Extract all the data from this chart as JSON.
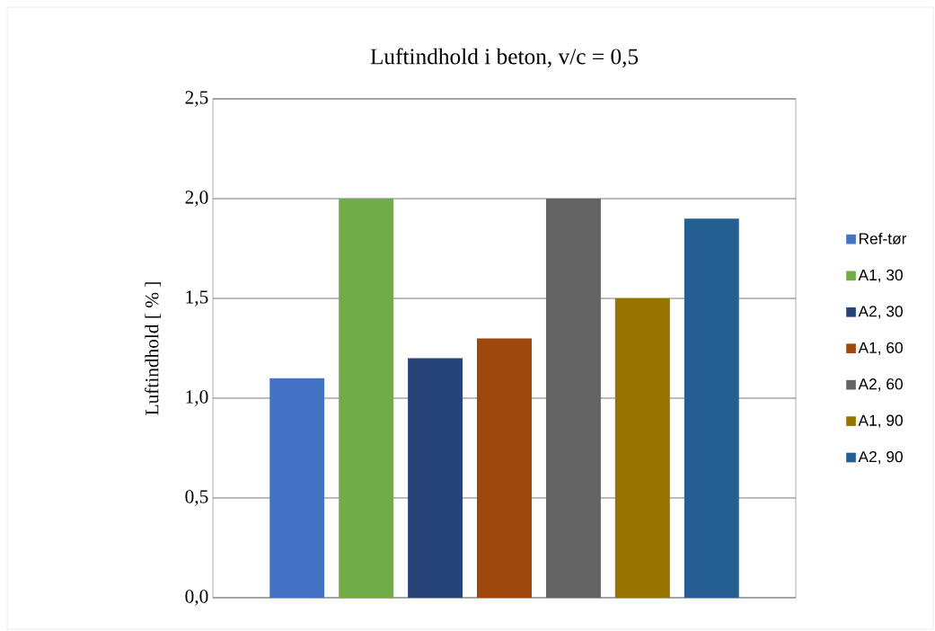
{
  "chart_data": {
    "type": "bar",
    "title": "Luftindhold i beton, v/c = 0,5",
    "ylabel": "Luftindhold [ % ]",
    "categories": [
      null
    ],
    "series": [
      {
        "name": "Ref-tør",
        "color": "#4472c4",
        "values": [
          1.1
        ]
      },
      {
        "name": "A1, 30",
        "color": "#70ad47",
        "values": [
          2.0
        ]
      },
      {
        "name": "A2, 30",
        "color": "#264478",
        "values": [
          1.2
        ]
      },
      {
        "name": "A1, 60",
        "color": "#9e480e",
        "values": [
          1.3
        ]
      },
      {
        "name": "A2, 60",
        "color": "#636363",
        "values": [
          2.0
        ]
      },
      {
        "name": "A1, 90",
        "color": "#997300",
        "values": [
          1.5
        ]
      },
      {
        "name": "A2, 90",
        "color": "#255e91",
        "values": [
          1.9
        ]
      }
    ],
    "ylim": [
      0,
      2.5
    ],
    "yticks": [
      {
        "value": 0,
        "label": "0,0"
      },
      {
        "value": 0.5,
        "label": "0,5"
      },
      {
        "value": 1,
        "label": "1,0"
      },
      {
        "value": 1.5,
        "label": "1,5"
      },
      {
        "value": 2,
        "label": "2,0"
      },
      {
        "value": 2.5,
        "label": "2,5"
      }
    ],
    "grid": "y",
    "legend": "right"
  }
}
